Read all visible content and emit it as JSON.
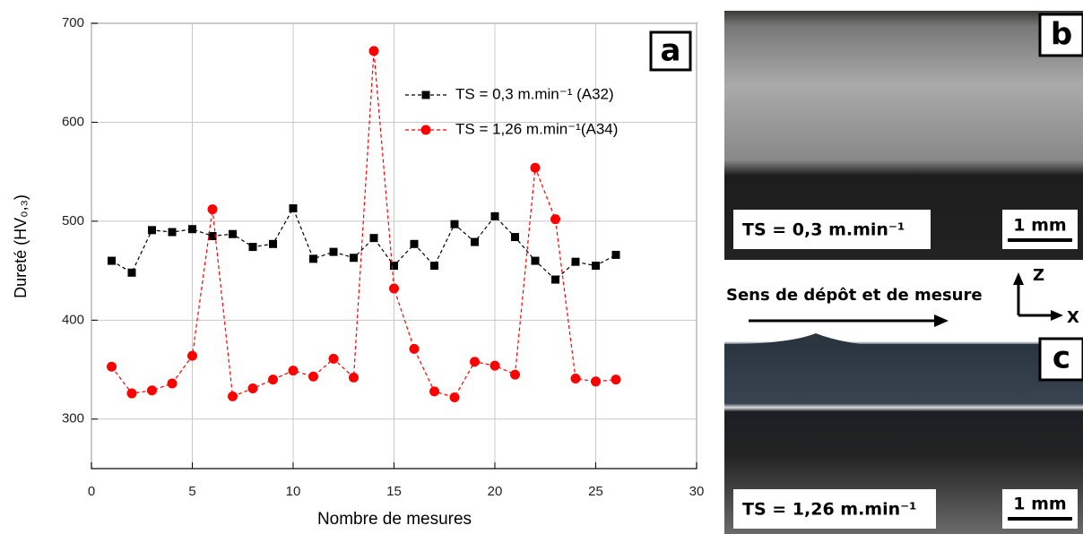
{
  "chart_data": {
    "type": "line",
    "xlabel": "Nombre de mesures",
    "ylabel": "Dureté (HV₀,₃)",
    "panel_label": "a",
    "x": [
      1,
      2,
      3,
      4,
      5,
      6,
      7,
      8,
      9,
      10,
      11,
      12,
      13,
      14,
      15,
      16,
      17,
      18,
      19,
      20,
      21,
      22,
      23,
      24,
      25,
      26
    ],
    "series": [
      {
        "name": "TS = 0,3 m.min⁻¹ (A32)",
        "color": "#000000",
        "marker": "square",
        "values": [
          460,
          448,
          491,
          489,
          492,
          485,
          487,
          474,
          477,
          513,
          462,
          469,
          463,
          483,
          455,
          477,
          455,
          497,
          479,
          505,
          484,
          460,
          441,
          459,
          455,
          466
        ]
      },
      {
        "name": "TS = 1,26 m.min⁻¹(A34)",
        "color": "#ff0000",
        "marker": "circle",
        "values": [
          353,
          326,
          329,
          336,
          364,
          512,
          323,
          331,
          340,
          349,
          343,
          361,
          342,
          672,
          432,
          371,
          328,
          322,
          358,
          354,
          345,
          554,
          502,
          341,
          338,
          340
        ]
      }
    ],
    "xlim": [
      0,
      30
    ],
    "xticks": [
      0,
      5,
      10,
      15,
      20,
      25,
      30
    ],
    "ylim": [
      250,
      700
    ],
    "yticks": [
      300,
      400,
      500,
      600,
      700
    ],
    "grid": true,
    "legend": "upper right"
  },
  "figure": {
    "panel_b": {
      "label": "b",
      "caption": "TS = 0,3 m.min⁻¹",
      "scale": "1 mm"
    },
    "panel_c": {
      "label": "c",
      "caption": "TS = 1,26 m.min⁻¹",
      "scale": "1 mm"
    },
    "direction": "Sens de dépôt et de mesure",
    "axis_z": "Z",
    "axis_x": "X"
  }
}
